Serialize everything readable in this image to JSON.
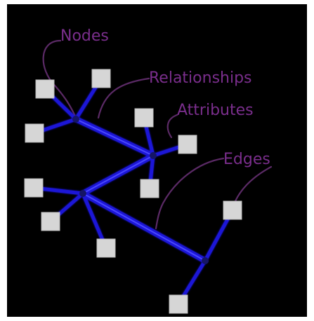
{
  "diagram": {
    "labels": {
      "nodes": "Nodes",
      "relationships": "Relationships",
      "attributes": "Attributes",
      "edges": "Edges"
    },
    "colors": {
      "background": "#000000",
      "frame": "#ffffff",
      "edge": "#1a16d6",
      "edge_highlight": "#4a46ff",
      "node_fill": "#d6d6d6",
      "label": "#7a2e8c",
      "leader": "#5b2a66",
      "hub": "#151566"
    }
  }
}
